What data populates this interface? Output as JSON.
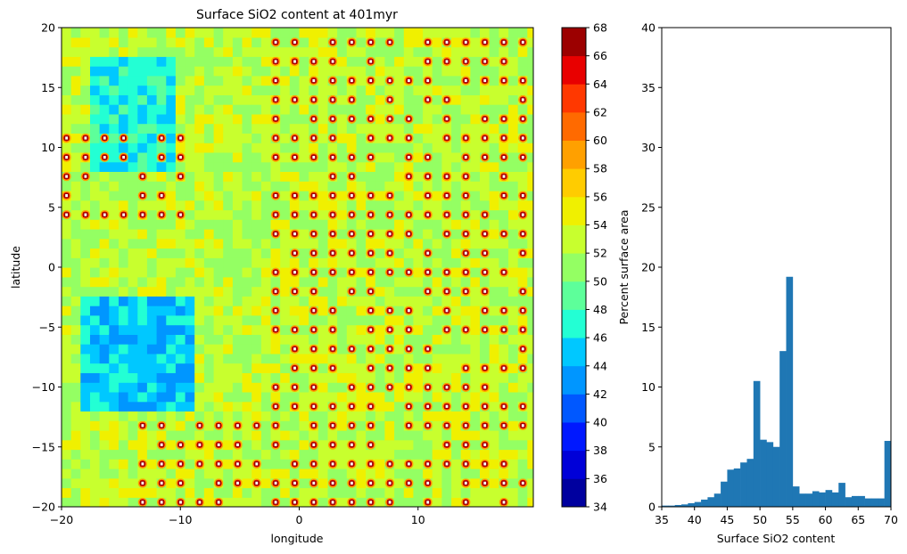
{
  "chart_data": [
    {
      "type": "heatmap",
      "title": "Surface SiO2 content at 401myr",
      "xlabel": "longitude",
      "ylabel": "latitude",
      "xlim": [
        -20,
        19.7
      ],
      "ylim": [
        -20,
        20
      ],
      "xticks": [
        -20,
        -10,
        0,
        10
      ],
      "yticks": [
        -20,
        -15,
        -10,
        -5,
        0,
        5,
        10,
        15,
        20
      ],
      "grid": false,
      "colormap": "jet",
      "colorbar": {
        "levels": [
          34,
          36,
          38,
          40,
          42,
          44,
          46,
          48,
          50,
          52,
          54,
          56,
          58,
          60,
          62,
          64,
          66,
          68
        ],
        "ticks": [
          34,
          36,
          38,
          40,
          42,
          44,
          46,
          48,
          50,
          52,
          54,
          56,
          58,
          60,
          62,
          64,
          66,
          68
        ],
        "colors": [
          "#00009f",
          "#0000d8",
          "#0018ff",
          "#0058ff",
          "#0096ff",
          "#00c8ff",
          "#23ffd4",
          "#5dff9a",
          "#94ff63",
          "#c8ff2e",
          "#f0f000",
          "#ffcc00",
          "#ffa000",
          "#ff6a00",
          "#ff3800",
          "#e80000",
          "#9c0000"
        ]
      },
      "regions": {
        "background_level": 52,
        "low_silica_zones": [
          {
            "lon": [
              -19,
              -9
            ],
            "lat": [
              -12,
              -3
            ],
            "level": 44
          },
          {
            "lon": [
              -18,
              -11
            ],
            "lat": [
              8,
              17
            ],
            "level": 46
          },
          {
            "lon": [
              -16,
              -12
            ],
            "lat": [
              -9,
              -5
            ],
            "level": 40
          }
        ],
        "high_silica_zones": [
          {
            "lon": [
              -20,
              -10
            ],
            "lat": [
              4,
              11
            ]
          },
          {
            "lon": [
              -15,
              -2
            ],
            "lat": [
              -20,
              -12
            ]
          },
          {
            "lon": [
              -3,
              19.7
            ],
            "lat": [
              -20,
              20
            ]
          }
        ]
      }
    },
    {
      "type": "bar",
      "xlabel": "Surface SiO2 content",
      "ylabel": "Percent surface area",
      "xlim": [
        35,
        70
      ],
      "ylim": [
        0,
        40
      ],
      "xticks": [
        35,
        40,
        45,
        50,
        55,
        60,
        65,
        70
      ],
      "yticks": [
        0,
        5,
        10,
        15,
        20,
        25,
        30,
        35,
        40
      ],
      "grid": false,
      "bar_color": "#1f77b4",
      "bin_width": 1,
      "bin_starts": [
        35,
        36,
        37,
        38,
        39,
        40,
        41,
        42,
        43,
        44,
        45,
        46,
        47,
        48,
        49,
        50,
        51,
        52,
        53,
        54,
        55,
        56,
        57,
        58,
        59,
        60,
        61,
        62,
        63,
        64,
        65,
        66,
        67,
        68,
        69
      ],
      "values": [
        0.1,
        0.1,
        0.15,
        0.2,
        0.3,
        0.4,
        0.6,
        0.8,
        1.1,
        2.1,
        3.1,
        3.2,
        3.7,
        4.0,
        10.5,
        5.6,
        5.4,
        5.0,
        13.0,
        19.2,
        1.7,
        1.1,
        1.1,
        1.3,
        1.2,
        1.4,
        1.2,
        2.0,
        0.8,
        0.9,
        0.9,
        0.7,
        0.7,
        0.7,
        5.5
      ]
    }
  ]
}
